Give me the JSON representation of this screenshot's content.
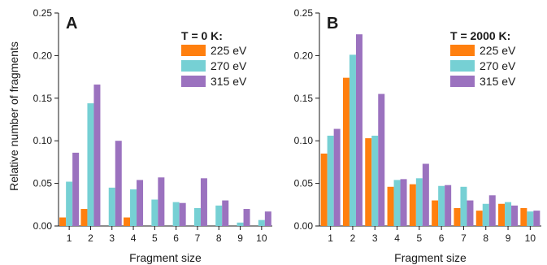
{
  "ylabel": "Relative number of fragments",
  "chart_data": [
    {
      "type": "bar",
      "panel": "A",
      "legend_title": "T = 0 K:",
      "legend_position": "top-right",
      "xlabel": "Fragment size",
      "categories": [
        "1",
        "2",
        "3",
        "4",
        "5",
        "6",
        "7",
        "8",
        "9",
        "10"
      ],
      "ylim": [
        0,
        0.25
      ],
      "yticks": [
        "0.00",
        "0.05",
        "0.10",
        "0.15",
        "0.20",
        "0.25"
      ],
      "grid": false,
      "series": [
        {
          "name": "225 eV",
          "color": "#ff7f0e",
          "values": [
            0.01,
            0.02,
            0,
            0.01,
            0,
            0,
            0,
            0,
            0,
            0
          ]
        },
        {
          "name": "270 eV",
          "color": "#76d0d4",
          "values": [
            0.052,
            0.144,
            0.045,
            0.043,
            0.031,
            0.028,
            0.021,
            0.024,
            0.004,
            0.007
          ]
        },
        {
          "name": "315 eV",
          "color": "#9b72bf",
          "values": [
            0.086,
            0.166,
            0.1,
            0.054,
            0.057,
            0.027,
            0.056,
            0.03,
            0.02,
            0.017
          ]
        }
      ]
    },
    {
      "type": "bar",
      "panel": "B",
      "legend_title": "T = 2000 K:",
      "legend_position": "top-right",
      "xlabel": "Fragment size",
      "categories": [
        "1",
        "2",
        "3",
        "4",
        "5",
        "6",
        "7",
        "8",
        "9",
        "10"
      ],
      "ylim": [
        0,
        0.25
      ],
      "yticks": [
        "0.00",
        "0.05",
        "0.10",
        "0.15",
        "0.20",
        "0.25"
      ],
      "grid": false,
      "series": [
        {
          "name": "225 eV",
          "color": "#ff7f0e",
          "values": [
            0.085,
            0.174,
            0.103,
            0.046,
            0.049,
            0.03,
            0.021,
            0.018,
            0.026,
            0.021
          ]
        },
        {
          "name": "270 eV",
          "color": "#76d0d4",
          "values": [
            0.106,
            0.201,
            0.106,
            0.054,
            0.056,
            0.047,
            0.046,
            0.026,
            0.028,
            0.017
          ]
        },
        {
          "name": "315 eV",
          "color": "#9b72bf",
          "values": [
            0.114,
            0.225,
            0.155,
            0.055,
            0.073,
            0.048,
            0.03,
            0.036,
            0.024,
            0.018
          ]
        }
      ]
    }
  ]
}
